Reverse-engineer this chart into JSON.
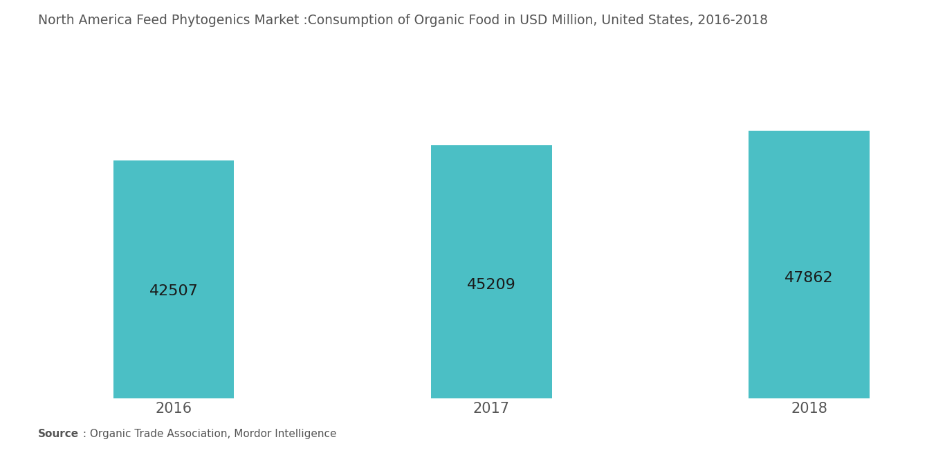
{
  "title": "North America Feed Phytogenics Market :Consumption of Organic Food in USD Million, United States, 2016-2018",
  "categories": [
    "2016",
    "2017",
    "2018"
  ],
  "values": [
    42507,
    45209,
    47862
  ],
  "bar_color": "#4BBFC5",
  "label_color": "#1a1a1a",
  "label_fontsize": 16,
  "title_fontsize": 13.5,
  "title_color": "#555555",
  "tick_label_fontsize": 15,
  "tick_label_color": "#555555",
  "background_color": "#ffffff",
  "source_bold": "Source",
  "source_rest": " : Organic Trade Association, Mordor Intelligence",
  "ylim_min": 0,
  "ylim_max": 55000,
  "bar_width": 0.38
}
